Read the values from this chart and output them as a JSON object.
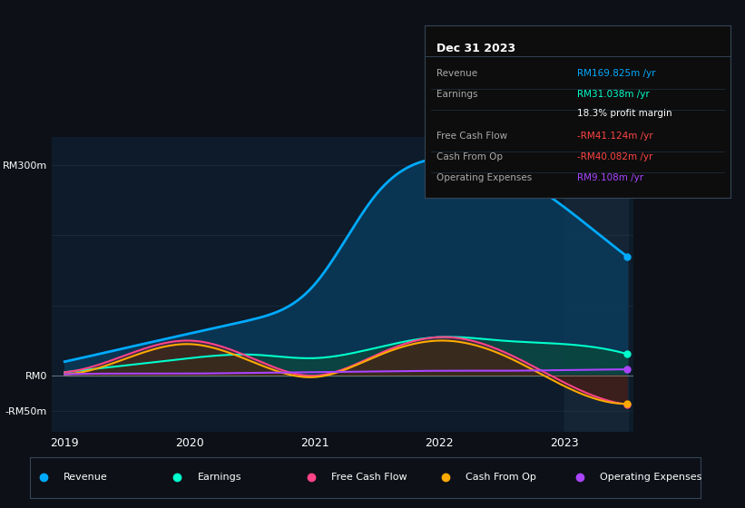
{
  "bg_color": "#0d1117",
  "plot_bg_color": "#0d1b2a",
  "title": "Dec 31 2023",
  "years": [
    2019,
    2019.5,
    2020,
    2020.5,
    2021,
    2021.5,
    2022,
    2022.5,
    2023,
    2023.5
  ],
  "x_ticks": [
    2019,
    2020,
    2021,
    2022,
    2023
  ],
  "ylim": [
    -80,
    340
  ],
  "y_ticks": [
    -50,
    0,
    300
  ],
  "y_tick_labels": [
    "-RM50m",
    "RM0",
    "RM300m"
  ],
  "shaded_x_start": 2023,
  "revenue": [
    20,
    40,
    60,
    80,
    130,
    260,
    310,
    295,
    240,
    170
  ],
  "earnings": [
    5,
    15,
    25,
    30,
    25,
    40,
    55,
    50,
    45,
    31
  ],
  "free_cash_flow": [
    5,
    30,
    50,
    25,
    0,
    30,
    55,
    35,
    -10,
    -41
  ],
  "cash_from_op": [
    2,
    25,
    45,
    20,
    -2,
    28,
    50,
    30,
    -15,
    -40
  ],
  "operating_expenses": [
    2,
    3,
    3,
    4,
    5,
    6,
    7,
    7,
    8,
    9
  ],
  "revenue_color": "#00aaff",
  "earnings_color": "#00ffcc",
  "free_cash_flow_color": "#ff4488",
  "cash_from_op_color": "#ffaa00",
  "op_expenses_color": "#aa44ff",
  "revenue_fill": "#0a3a5a",
  "earnings_fill": "#0a4a3a",
  "free_cash_flow_fill": "#5a1a3a",
  "cash_from_op_fill": "#4a3a0a",
  "tooltip": {
    "title": "Dec 31 2023",
    "rows": [
      {
        "label": "Revenue",
        "value": "RM169.825m /yr",
        "color": "#00aaff"
      },
      {
        "label": "Earnings",
        "value": "RM31.038m /yr",
        "color": "#00ffcc"
      },
      {
        "label": "",
        "value": "18.3% profit margin",
        "color": "#ffffff"
      },
      {
        "label": "Free Cash Flow",
        "value": "-RM41.124m /yr",
        "color": "#ff4444"
      },
      {
        "label": "Cash From Op",
        "value": "-RM40.082m /yr",
        "color": "#ff4444"
      },
      {
        "label": "Operating Expenses",
        "value": "RM9.108m /yr",
        "color": "#aa44ff"
      }
    ]
  },
  "legend": [
    {
      "label": "Revenue",
      "color": "#00aaff"
    },
    {
      "label": "Earnings",
      "color": "#00ffcc"
    },
    {
      "label": "Free Cash Flow",
      "color": "#ff4488"
    },
    {
      "label": "Cash From Op",
      "color": "#ffaa00"
    },
    {
      "label": "Operating Expenses",
      "color": "#aa44ff"
    }
  ]
}
